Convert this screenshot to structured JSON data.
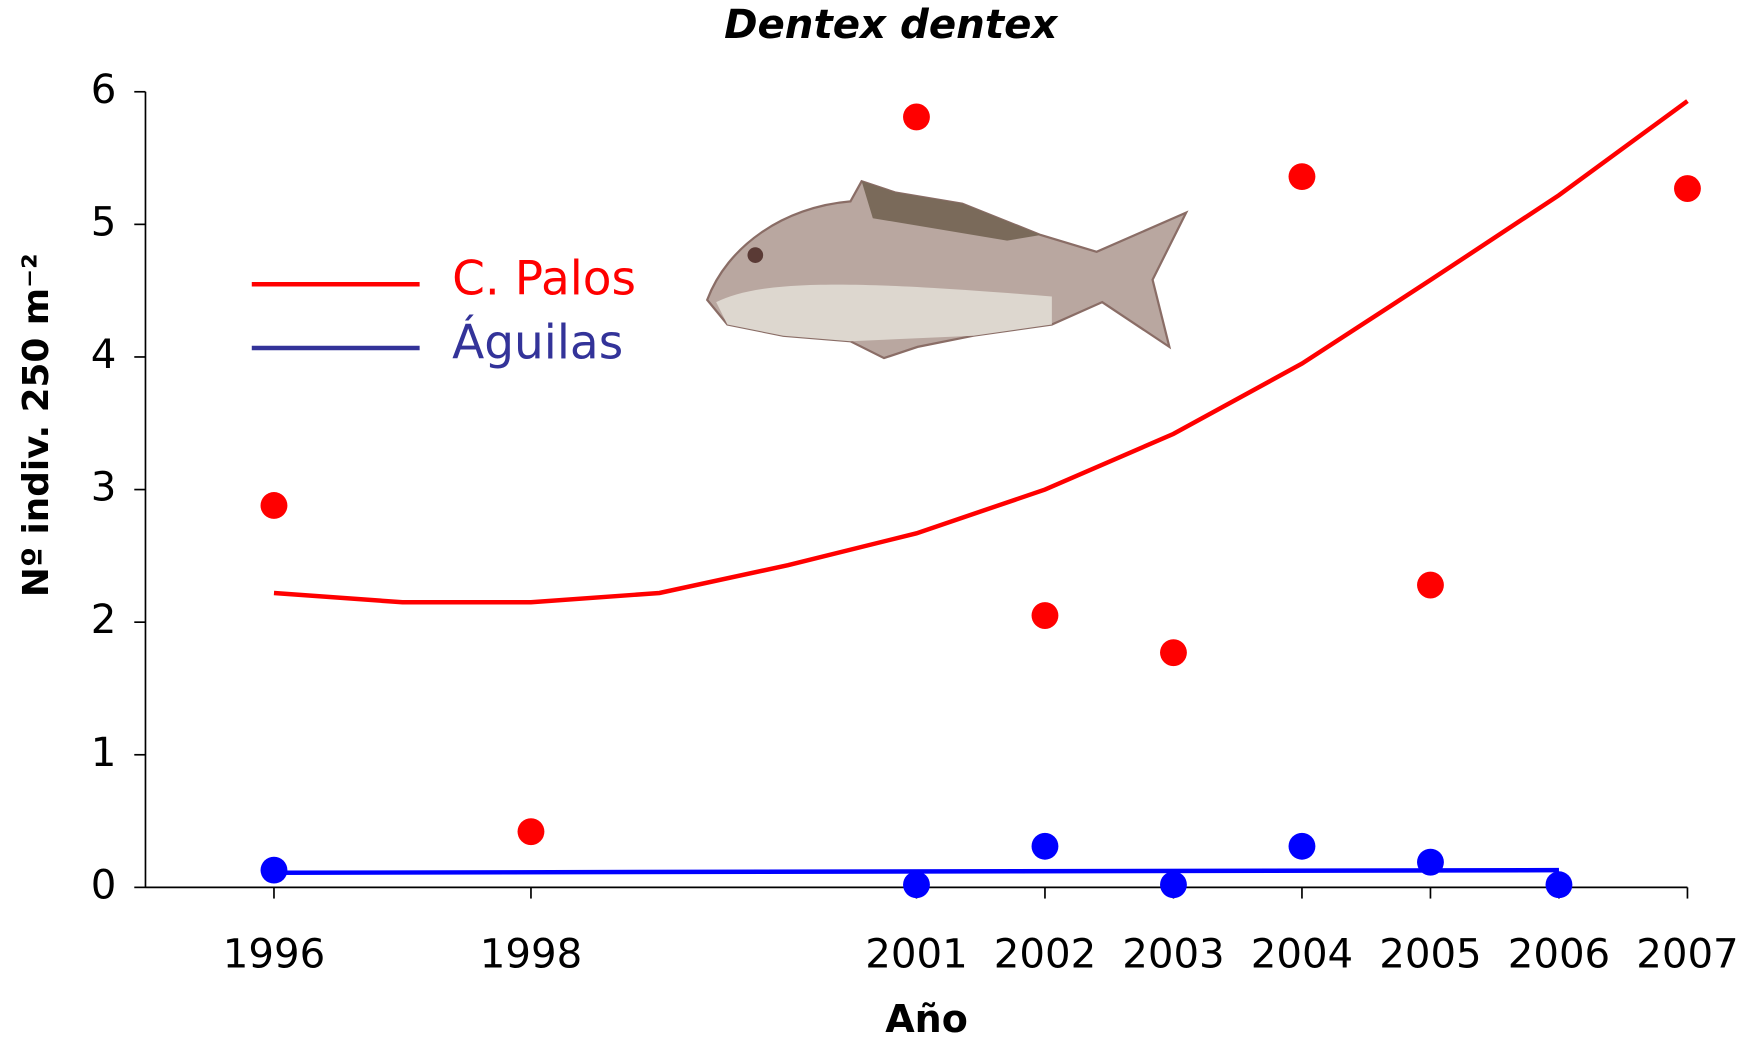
{
  "chart_data": {
    "type": "scatter",
    "title": "Dentex dentex",
    "x_label": "Año",
    "y_label": "Nº indiv. 250 m⁻²",
    "xlim": [
      1995,
      2007
    ],
    "xticks": [
      1996,
      1998,
      2001,
      2002,
      2003,
      2004,
      2005,
      2006,
      2007
    ],
    "ylim": [
      0,
      6
    ],
    "yticks": [
      0,
      1,
      2,
      3,
      4,
      5,
      6
    ],
    "series": [
      {
        "name": "C. Palos",
        "color": "#ff0000",
        "x": [
          1996,
          1998,
          2001,
          2002,
          2003,
          2004,
          2005,
          2007
        ],
        "values": [
          2.88,
          0.42,
          5.81,
          2.05,
          1.77,
          5.36,
          2.28,
          5.27
        ],
        "trend": {
          "x": [
            1996,
            1997,
            1998,
            1999,
            2000,
            2001,
            2002,
            2003,
            2004,
            2005,
            2006,
            2007
          ],
          "values": [
            2.22,
            2.15,
            2.15,
            2.22,
            2.43,
            2.67,
            3.0,
            3.42,
            3.95,
            4.58,
            5.22,
            5.93
          ]
        }
      },
      {
        "name": "Águilas",
        "color": "#0000ff",
        "x": [
          1996,
          2001,
          2002,
          2003,
          2004,
          2005,
          2006
        ],
        "values": [
          0.13,
          0.02,
          0.31,
          0.02,
          0.31,
          0.19,
          0.02
        ],
        "trend": {
          "x": [
            1996,
            2006
          ],
          "values": [
            0.11,
            0.13
          ]
        }
      }
    ]
  }
}
